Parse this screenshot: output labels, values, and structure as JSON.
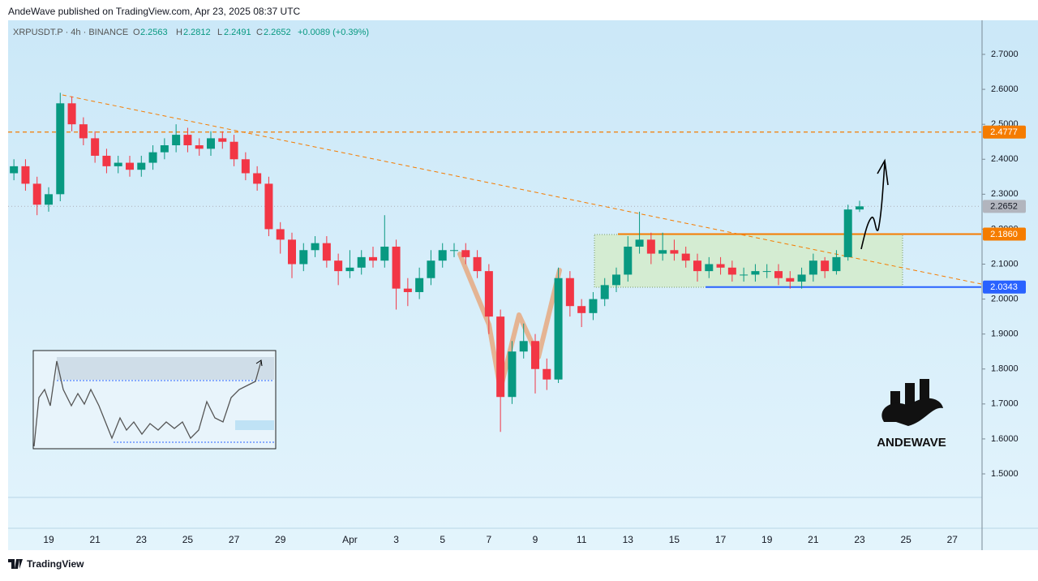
{
  "chart_data": {
    "type": "candlestick",
    "publisher": "AndeWave published on TradingView.com, Apr 23, 2025 08:37 UTC",
    "symbol": "XRPUSDT.P · 4h · BINANCE",
    "ohlc_letters": [
      "O",
      "H",
      "L",
      "C"
    ],
    "change": "+0.0089 (+0.39%)",
    "categories": [
      null,
      null,
      null,
      "19",
      null,
      null,
      null,
      "21",
      null,
      null,
      null,
      "23",
      null,
      null,
      null,
      "25",
      null,
      null,
      null,
      "27",
      null,
      null,
      null,
      "29",
      null,
      null,
      null,
      null,
      null,
      "Apr",
      null,
      null,
      null,
      "3",
      null,
      null,
      null,
      "5",
      null,
      null,
      null,
      "7",
      null,
      null,
      null,
      "9",
      null,
      null,
      null,
      "11",
      null,
      null,
      null,
      "13",
      null,
      null,
      null,
      "15",
      null,
      null,
      null,
      "17",
      null,
      null,
      null,
      "19",
      null,
      null,
      null,
      "21",
      null,
      null,
      null,
      "23",
      null,
      null,
      null,
      "25",
      null,
      null,
      null,
      "27",
      null,
      null
    ],
    "open": [
      2.36,
      2.38,
      2.33,
      2.27,
      2.3,
      2.56,
      2.5,
      2.46,
      2.41,
      2.38,
      2.39,
      2.37,
      2.39,
      2.42,
      2.44,
      2.47,
      2.44,
      2.43,
      2.46,
      2.45,
      2.4,
      2.36,
      2.33,
      2.2,
      2.17,
      2.1,
      2.14,
      2.16,
      2.11,
      2.08,
      2.09,
      2.12,
      2.11,
      2.15,
      2.03,
      2.02,
      2.06,
      2.11,
      2.14,
      2.14,
      2.12,
      2.08,
      1.95,
      1.72,
      1.85,
      1.88,
      1.8,
      1.77,
      2.06,
      1.98,
      1.96,
      2.0,
      2.04,
      2.07,
      2.15,
      2.17,
      2.13,
      2.14,
      2.13,
      2.11,
      2.08,
      2.1,
      2.09,
      2.07,
      2.07,
      2.08,
      2.08,
      2.06,
      2.05,
      2.07,
      2.11,
      2.08,
      2.12,
      2.2563,
      null,
      null,
      null,
      null,
      null,
      null,
      null,
      null,
      null,
      null
    ],
    "high": [
      2.4,
      2.4,
      2.35,
      2.32,
      2.59,
      2.58,
      2.52,
      2.48,
      2.43,
      2.41,
      2.41,
      2.41,
      2.44,
      2.46,
      2.5,
      2.49,
      2.46,
      2.48,
      2.48,
      2.47,
      2.42,
      2.38,
      2.35,
      2.22,
      2.19,
      2.16,
      2.18,
      2.18,
      2.13,
      2.14,
      2.14,
      2.15,
      2.24,
      2.17,
      2.06,
      2.09,
      2.14,
      2.16,
      2.16,
      2.16,
      2.14,
      2.1,
      1.97,
      1.88,
      1.93,
      1.9,
      1.83,
      2.09,
      2.08,
      2.0,
      2.02,
      2.06,
      2.09,
      2.18,
      2.25,
      2.19,
      2.19,
      2.17,
      2.15,
      2.13,
      2.12,
      2.12,
      2.11,
      2.09,
      2.1,
      2.1,
      2.1,
      2.08,
      2.09,
      2.13,
      2.12,
      2.14,
      2.27,
      2.2812,
      null,
      null,
      null,
      null,
      null,
      null,
      null,
      null,
      null,
      null
    ],
    "low": [
      2.34,
      2.31,
      2.24,
      2.25,
      2.28,
      2.48,
      2.44,
      2.39,
      2.36,
      2.36,
      2.35,
      2.35,
      2.37,
      2.4,
      2.42,
      2.42,
      2.41,
      2.41,
      2.43,
      2.38,
      2.34,
      2.31,
      2.18,
      2.13,
      2.06,
      2.08,
      2.12,
      2.09,
      2.04,
      2.06,
      2.07,
      2.09,
      2.09,
      1.97,
      1.98,
      2.0,
      2.04,
      2.09,
      2.12,
      2.1,
      2.06,
      1.9,
      1.62,
      1.7,
      1.83,
      1.73,
      1.74,
      1.76,
      1.95,
      1.92,
      1.94,
      1.98,
      2.02,
      2.05,
      2.13,
      2.1,
      2.11,
      2.11,
      2.09,
      2.05,
      2.06,
      2.07,
      2.05,
      2.05,
      2.05,
      2.06,
      2.04,
      2.03,
      2.03,
      2.05,
      2.06,
      2.07,
      2.11,
      2.2491,
      null,
      null,
      null,
      null,
      null,
      null,
      null,
      null,
      null,
      null
    ],
    "close": [
      2.38,
      2.33,
      2.27,
      2.3,
      2.56,
      2.5,
      2.46,
      2.41,
      2.38,
      2.39,
      2.37,
      2.39,
      2.42,
      2.44,
      2.47,
      2.44,
      2.43,
      2.46,
      2.45,
      2.4,
      2.36,
      2.33,
      2.2,
      2.17,
      2.1,
      2.14,
      2.16,
      2.11,
      2.08,
      2.09,
      2.12,
      2.11,
      2.15,
      2.03,
      2.02,
      2.06,
      2.11,
      2.14,
      2.14,
      2.12,
      2.08,
      1.95,
      1.72,
      1.85,
      1.88,
      1.8,
      1.77,
      2.06,
      1.98,
      1.96,
      2.0,
      2.04,
      2.07,
      2.15,
      2.17,
      2.13,
      2.14,
      2.13,
      2.11,
      2.08,
      2.1,
      2.09,
      2.07,
      2.07,
      2.08,
      2.08,
      2.06,
      2.05,
      2.07,
      2.11,
      2.08,
      2.12,
      2.2563,
      2.2652,
      null,
      null,
      null,
      null,
      null,
      null,
      null,
      null,
      null,
      null
    ],
    "up_color": "#089981",
    "down_color": "#f23645",
    "ylim": [
      1.435,
      2.7975
    ],
    "yticks": [
      {
        "value": 1.5,
        "label": "1.5000"
      },
      {
        "value": 1.6,
        "label": "1.6000"
      },
      {
        "value": 1.7,
        "label": "1.7000"
      },
      {
        "value": 1.8,
        "label": "1.8000"
      },
      {
        "value": 1.9,
        "label": "1.9000"
      },
      {
        "value": 2.0,
        "label": "2.0000"
      },
      {
        "value": 2.1,
        "label": "2.1000"
      },
      {
        "value": 2.2,
        "label": "2.2000"
      },
      {
        "value": 2.3,
        "label": "2.3000"
      },
      {
        "value": 2.4,
        "label": "2.4000"
      },
      {
        "value": 2.5,
        "label": "2.5000"
      },
      {
        "value": 2.6,
        "label": "2.6000"
      },
      {
        "value": 2.7,
        "label": "2.7000"
      }
    ],
    "levels": [
      {
        "value": 2.4777,
        "label": "2.4777",
        "color": "#f57c00",
        "style": "dashed"
      },
      {
        "value": 2.2652,
        "label": "2.2652",
        "color": "#b2b5be",
        "style": "dotted"
      },
      {
        "value": 2.186,
        "label": "2.1860",
        "color": "#f57c00",
        "style": "solid"
      },
      {
        "value": 2.0343,
        "label": "2.0343",
        "color": "#2962ff",
        "style": "solid"
      }
    ],
    "watermark": "ANDEWAVE",
    "footer": "TradingView"
  }
}
